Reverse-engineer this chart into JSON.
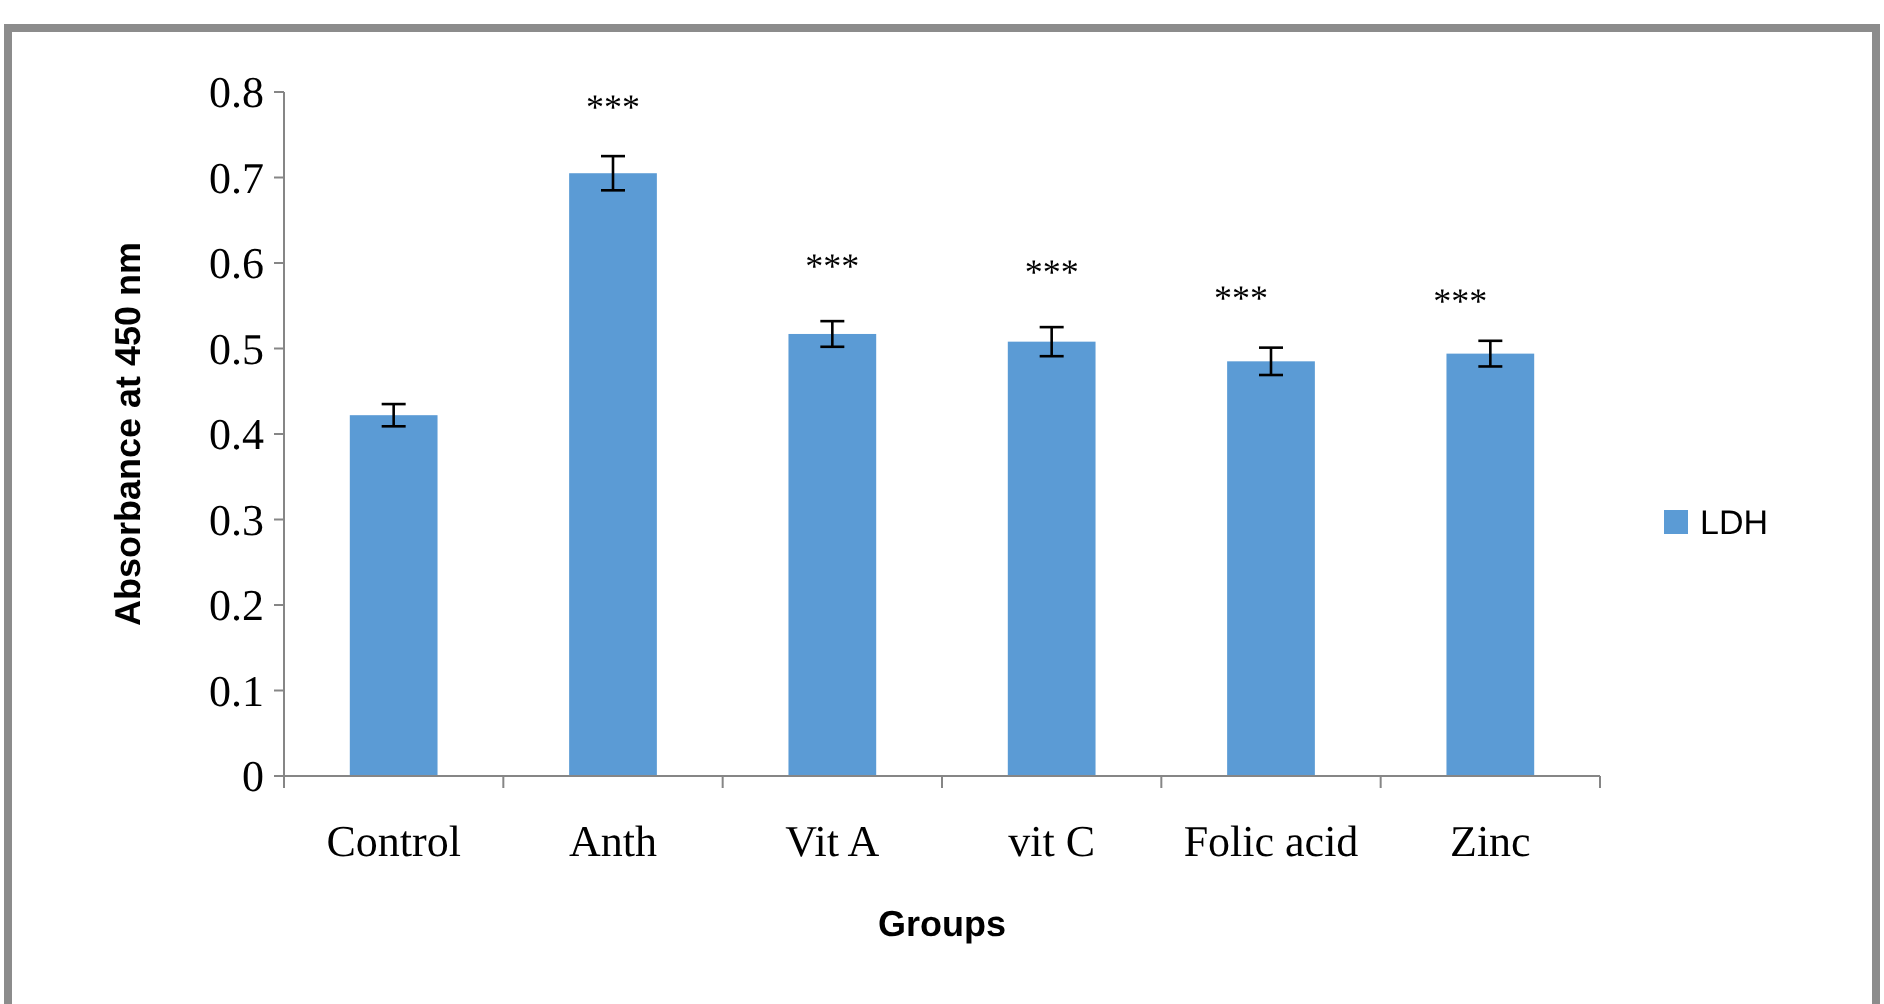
{
  "chart_data": {
    "type": "bar",
    "xlabel": "Groups",
    "ylabel": "Absorbance at 450 nm",
    "categories": [
      "Control",
      "Anth",
      "Vit A",
      "vit C",
      "Folic acid",
      "Zinc"
    ],
    "series": [
      {
        "name": "LDH",
        "color": "#5b9bd5",
        "values": [
          0.422,
          0.705,
          0.517,
          0.508,
          0.485,
          0.494
        ],
        "errors": [
          0.013,
          0.02,
          0.015,
          0.017,
          0.016,
          0.015
        ]
      }
    ],
    "ylim": [
      0,
      0.8
    ],
    "yticks": [
      {
        "value": 0,
        "label": "0"
      },
      0.1,
      0.2,
      0.3,
      0.4,
      0.5,
      0.6,
      0.7,
      0.8
    ],
    "legend": "right",
    "grid": false,
    "annotations": [
      "***",
      "***",
      "***",
      "***",
      "***"
    ]
  }
}
